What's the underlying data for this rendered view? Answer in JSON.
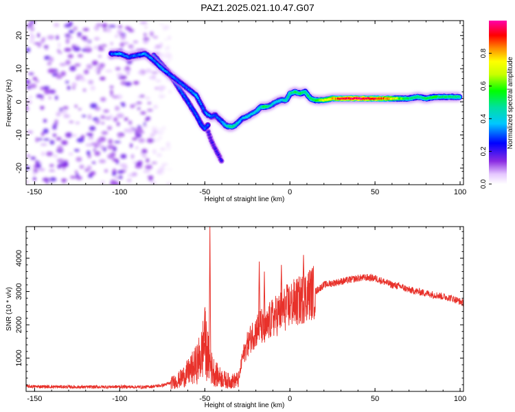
{
  "title": "PAZ1.2025.021.10.47.G07",
  "chart_data": [
    {
      "type": "heatmap",
      "xlabel": "Height of straight line (km)",
      "ylabel": "Frequency (Hz)",
      "xlim": [
        -155,
        102
      ],
      "ylim": [
        -25,
        24.5
      ],
      "xticks": [
        -150,
        -100,
        -50,
        0,
        50,
        100
      ],
      "yticks": [
        -20,
        -10,
        0,
        10,
        20
      ],
      "colorbar": {
        "label": "Normalized spectral amplitude",
        "range": [
          0,
          1
        ],
        "ticks": [
          0.0,
          0.2,
          0.4,
          0.6,
          0.8
        ]
      },
      "ridge": {
        "x": [
          -105,
          -100,
          -95,
          -90,
          -85,
          -80,
          -75,
          -70,
          -65,
          -60,
          -55,
          -52,
          -50,
          -48,
          -46,
          -44,
          -42,
          -40,
          -38,
          -36,
          -34,
          -32,
          -30,
          -28,
          -25,
          -22,
          -20,
          -17,
          -14,
          -11,
          -8,
          -5,
          -2,
          0,
          3,
          6,
          9,
          12,
          15,
          20,
          25,
          30,
          35,
          40,
          45,
          50,
          55,
          60,
          65,
          70,
          75,
          80,
          85,
          90,
          95,
          100
        ],
        "y": [
          14.5,
          14.5,
          13.5,
          14,
          14.5,
          12.5,
          10,
          8,
          6,
          4,
          2,
          -1,
          -3,
          -4,
          -4.5,
          -4,
          -5,
          -6,
          -7,
          -7.5,
          -7.5,
          -7,
          -6,
          -5,
          -4.5,
          -3.5,
          -3,
          -1.5,
          -1.5,
          -1,
          0,
          0.5,
          0.5,
          2.5,
          3,
          2.5,
          3,
          1,
          0.5,
          0.5,
          1,
          1,
          1,
          1,
          1,
          1,
          1,
          1,
          1,
          1,
          1.5,
          1,
          1.5,
          1.5,
          1.5,
          1.5
        ],
        "amplitude": [
          0.3,
          0.35,
          0.3,
          0.3,
          0.35,
          0.3,
          0.35,
          0.3,
          0.3,
          0.3,
          0.35,
          0.3,
          0.3,
          0.35,
          0.3,
          0.3,
          0.3,
          0.35,
          0.4,
          0.45,
          0.5,
          0.45,
          0.4,
          0.35,
          0.4,
          0.4,
          0.4,
          0.45,
          0.55,
          0.4,
          0.4,
          0.4,
          0.45,
          0.5,
          0.5,
          0.5,
          0.5,
          0.5,
          0.55,
          0.7,
          0.8,
          0.9,
          0.95,
          1.0,
          0.95,
          0.9,
          0.85,
          0.75,
          0.6,
          0.5,
          0.5,
          0.5,
          0.55,
          0.5,
          0.5,
          0.5
        ]
      },
      "branch": {
        "x": [
          -80,
          -75,
          -70,
          -65,
          -60,
          -55,
          -52,
          -50,
          -48
        ],
        "y": [
          14,
          11,
          8,
          4,
          0,
          -4,
          -7,
          -8,
          -7
        ],
        "amplitude": [
          0.3,
          0.3,
          0.3,
          0.3,
          0.3,
          0.3,
          0.3,
          0.3,
          0.3
        ]
      },
      "tail": {
        "x": [
          -48,
          -46,
          -44,
          -42,
          -40
        ],
        "y": [
          -9,
          -12,
          -14,
          -16,
          -18
        ],
        "amplitude": [
          0.2,
          0.2,
          0.2,
          0.2,
          0.2
        ]
      },
      "noise_region": {
        "xmin": -155,
        "xmax": -70,
        "ymin": -25,
        "ymax": 24.5,
        "amplitude": 0.15
      }
    },
    {
      "type": "line",
      "xlabel": "Height of straight line (km)",
      "ylabel": "SNR (10 * v/v)",
      "xlim": [
        -155,
        102
      ],
      "ylim": [
        0,
        4950
      ],
      "xticks": [
        -150,
        -100,
        -50,
        0,
        50,
        100
      ],
      "yticks": [
        1000,
        2000,
        3000,
        4000
      ],
      "color": "#e8312a",
      "x": [
        -155,
        -140,
        -120,
        -100,
        -85,
        -75,
        -70,
        -65,
        -60,
        -55,
        -52,
        -50,
        -48,
        -46,
        -44,
        -42,
        -40,
        -38,
        -35,
        -30,
        -28,
        -25,
        -22,
        -20,
        -17,
        -15,
        -12,
        -10,
        -5,
        0,
        5,
        8,
        10,
        15,
        20,
        25,
        30,
        35,
        40,
        45,
        50,
        55,
        60,
        65,
        70,
        75,
        80,
        85,
        90,
        95,
        100,
        102
      ],
      "y": [
        150,
        140,
        130,
        140,
        130,
        180,
        250,
        350,
        550,
        800,
        1100,
        1500,
        1000,
        700,
        550,
        450,
        400,
        350,
        300,
        350,
        1000,
        1400,
        1700,
        1800,
        2000,
        1750,
        2100,
        2200,
        2400,
        2600,
        2700,
        2800,
        2900,
        3000,
        3200,
        3250,
        3300,
        3350,
        3400,
        3420,
        3400,
        3300,
        3200,
        3150,
        3050,
        3000,
        2950,
        2900,
        2850,
        2800,
        2700,
        2650
      ],
      "spikes": [
        {
          "x": -47,
          "y": 4950
        },
        {
          "x": -50,
          "y": 2500
        },
        {
          "x": -18,
          "y": 3900
        },
        {
          "x": -15,
          "y": 3600
        },
        {
          "x": -5,
          "y": 3800
        },
        {
          "x": 8,
          "y": 4100
        },
        {
          "x": -25,
          "y": 1600
        }
      ]
    }
  ]
}
